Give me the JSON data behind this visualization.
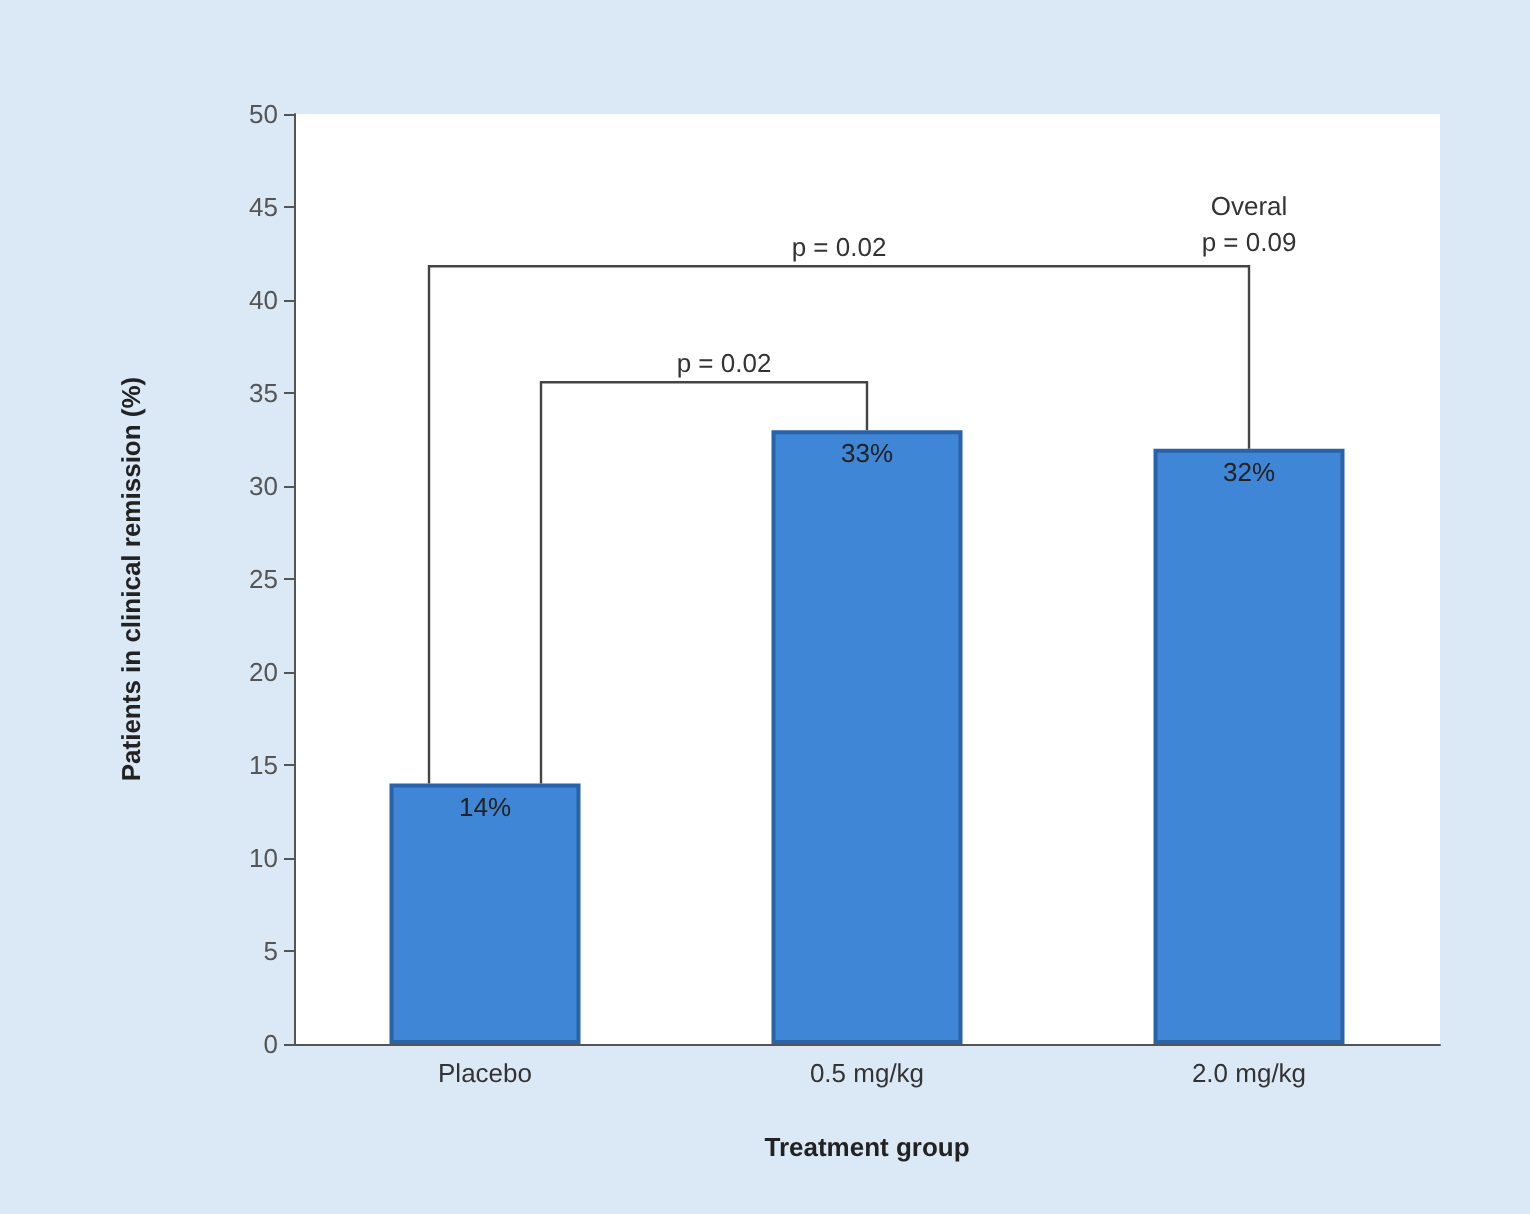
{
  "chart_data": {
    "type": "bar",
    "xlabel": "Treatment group",
    "ylabel": "Patients in clinical remission (%)",
    "categories": [
      "Placebo",
      "0.5 mg/kg",
      "2.0 mg/kg"
    ],
    "values": [
      14,
      33,
      32
    ],
    "color": "#3f86d6",
    "value_labels": [
      "14%",
      "33%",
      "32%"
    ],
    "ylim": [
      0,
      50
    ],
    "yticks": [
      0,
      5,
      10,
      15,
      20,
      25,
      30,
      35,
      40,
      45,
      50
    ],
    "grid": false,
    "annotations": [
      "p = 0.02",
      "p = 0.02",
      "Overal\np = 0.09"
    ]
  }
}
